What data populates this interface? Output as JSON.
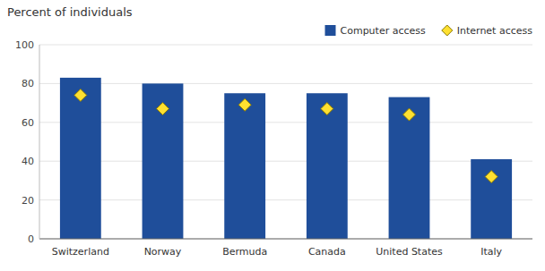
{
  "chart_data": {
    "type": "bar",
    "ylabel": "Percent of individuals",
    "categories": [
      "Switzerland",
      "Norway",
      "Bermuda",
      "Canada",
      "United States",
      "Italy"
    ],
    "series": [
      {
        "name": "Computer access",
        "type": "bar",
        "color": "#1F4E9A",
        "values": [
          83,
          80,
          75,
          75,
          73,
          41
        ]
      },
      {
        "name": "Internet access",
        "type": "scatter",
        "marker": "diamond",
        "color": "#FFE030",
        "values": [
          74,
          67,
          69,
          67,
          64,
          32
        ]
      }
    ],
    "ylim": [
      0,
      100
    ],
    "yticks": [
      0,
      20,
      40,
      60,
      80,
      100
    ],
    "grid": true,
    "legend": "upper right"
  }
}
